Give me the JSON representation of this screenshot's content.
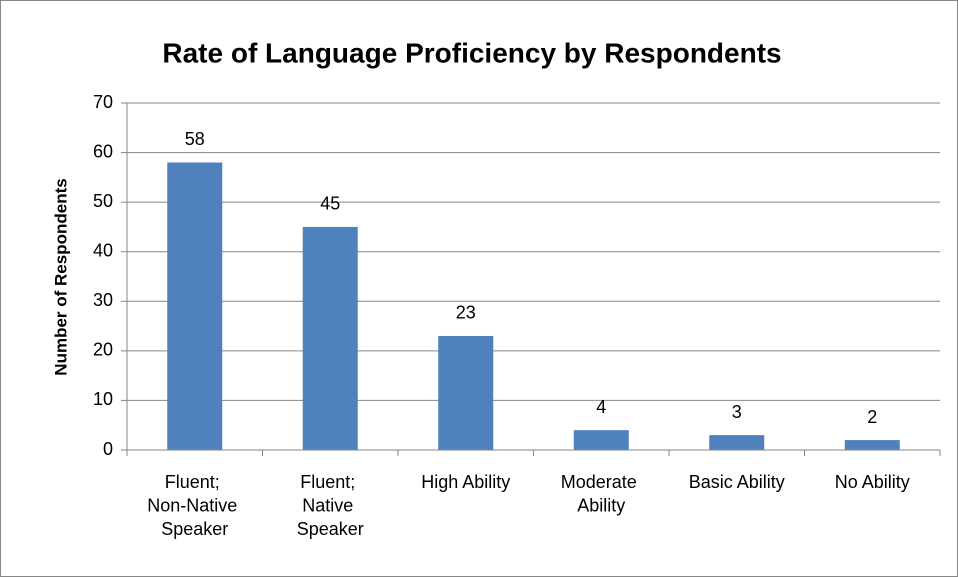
{
  "chart_data": {
    "type": "bar",
    "title": "Rate of Language Proficiency by Respondents",
    "y_label": "Number of Respondents",
    "categories": [
      "Fluent; Non-Native Speaker",
      "Fluent; Native Speaker",
      "High Ability",
      "Moderate Ability",
      "Basic Ability",
      "No Ability"
    ],
    "values": [
      58,
      45,
      23,
      4,
      3,
      2
    ],
    "color": "#4f81bd",
    "ylim": [
      0,
      70
    ],
    "yticks": [
      0,
      10,
      20,
      30,
      40,
      50,
      60,
      70
    ],
    "grid": true
  }
}
